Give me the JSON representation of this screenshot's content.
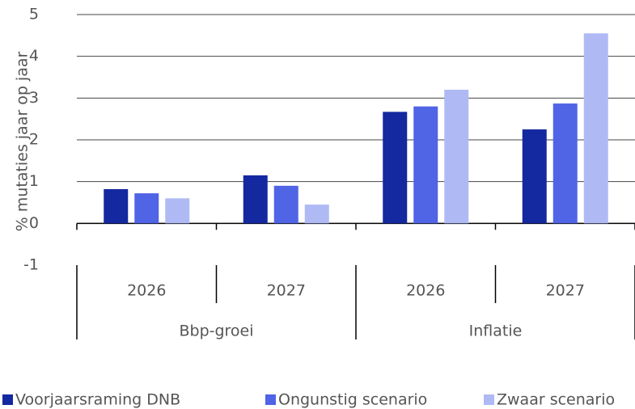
{
  "chart_data": {
    "type": "bar",
    "ylabel": "% mutaties jaar op jaar",
    "categories": [
      "2026",
      "2027",
      "2026",
      "2027"
    ],
    "category_groups": [
      "Bbp-groei",
      "Inflatie"
    ],
    "series": [
      {
        "name": "Voorjaarsraming DNB",
        "color": "#1428a0",
        "values": [
          0.82,
          1.15,
          2.67,
          2.25
        ]
      },
      {
        "name": "Ongunstig scenario",
        "color": "#5064e6",
        "values": [
          0.72,
          0.9,
          2.8,
          2.87
        ]
      },
      {
        "name": "Zwaar scenario",
        "color": "#afbaf5",
        "values": [
          0.6,
          0.45,
          3.2,
          4.55
        ]
      }
    ],
    "ylim": [
      -1,
      5
    ],
    "yticks": [
      -1,
      0,
      1,
      2,
      3,
      4,
      5
    ],
    "grid": true
  }
}
